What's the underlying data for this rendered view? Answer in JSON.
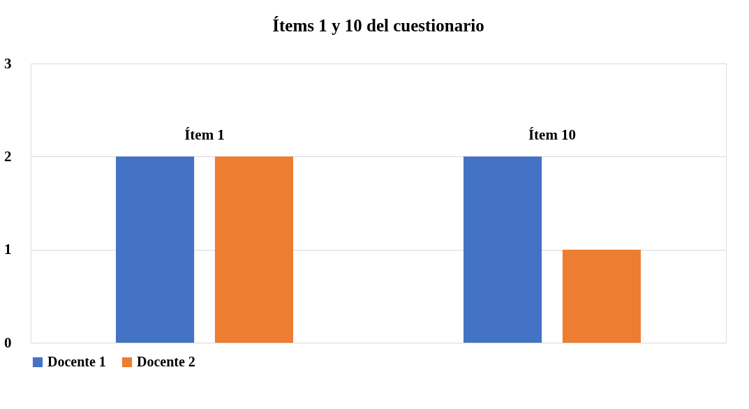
{
  "chart_data": {
    "type": "bar",
    "title": "Ítems 1 y 10 del cuestionario",
    "categories": [
      "Ítem 1",
      "Ítem 10"
    ],
    "series": [
      {
        "name": "Docente 1",
        "color": "#4472c4",
        "values": [
          2,
          2
        ]
      },
      {
        "name": "Docente 2",
        "color": "#ed7d31",
        "values": [
          2,
          1
        ]
      }
    ],
    "ylim": [
      0,
      3
    ],
    "yticks": [
      0,
      1,
      2,
      3
    ],
    "grid": "y",
    "legend": "bottom"
  }
}
